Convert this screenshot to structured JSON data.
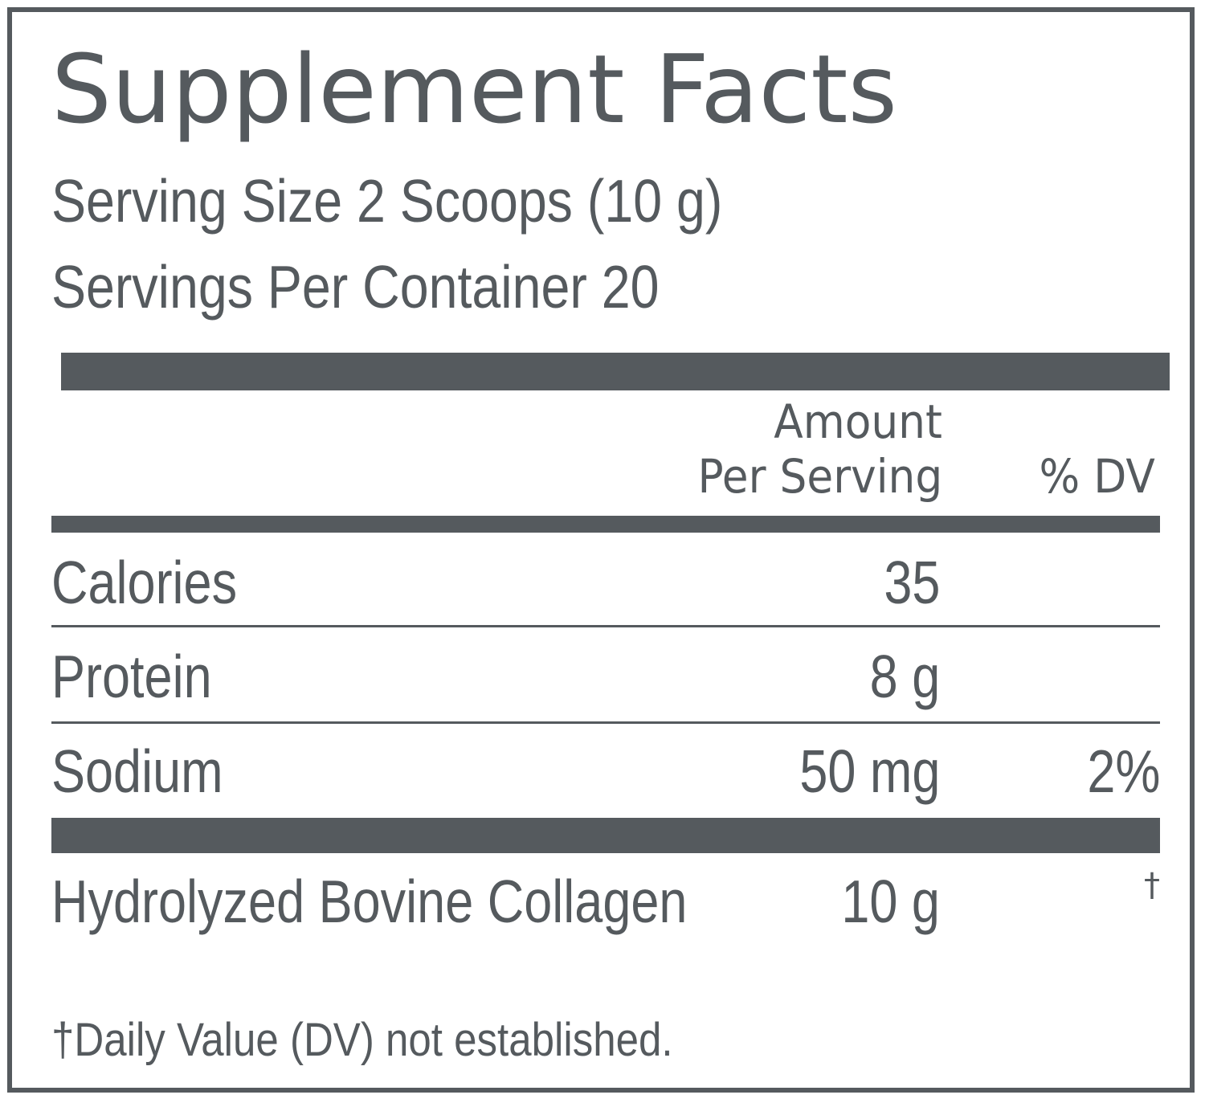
{
  "label": {
    "title": "Supplement Facts",
    "serving_size": "Serving Size 2 Scoops (10 g)",
    "servings_per_container": "Servings Per Container 20",
    "header": {
      "amount_line1": "Amount",
      "amount_line2": "Per Serving",
      "dv": "% DV"
    },
    "rows": [
      {
        "name": "Calories",
        "amount": "35",
        "dv": ""
      },
      {
        "name": "Protein",
        "amount": "8 g",
        "dv": ""
      },
      {
        "name": "Sodium",
        "amount": "50 mg",
        "dv": "2%"
      },
      {
        "name": "Hydrolyzed Bovine Collagen",
        "amount": "10 g",
        "dv": "†"
      }
    ],
    "footnote": "†Daily Value (DV) not established."
  },
  "colors": {
    "ink": "#555a5e",
    "background": "#ffffff"
  }
}
